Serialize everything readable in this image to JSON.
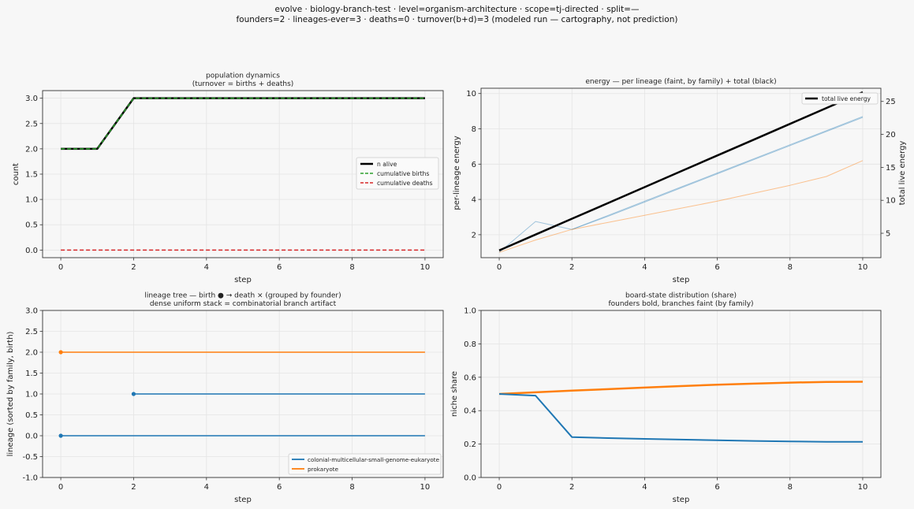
{
  "suptitle": {
    "line1": "evolve · biology-branch-test · level=organism-architecture · scope=tj-directed · split=—",
    "line2": "founders=2 · lineages-ever=3 · deaths=0 · turnover(b+d)=3   (modeled run — cartography, not prediction)"
  },
  "colors": {
    "blue": "#1f77b4",
    "orange": "#ff7f0e",
    "green": "#2ca02c",
    "red": "#d62728",
    "black": "#000000",
    "grid": "#e4e4e4",
    "panel_bg": "#f7f7f7"
  },
  "chart_data": [
    {
      "id": "population",
      "type": "line",
      "title": [
        "population dynamics",
        "(turnover = births + deaths)"
      ],
      "xlabel": "step",
      "ylabel": "count",
      "xlim": [
        -0.5,
        10.5
      ],
      "ylim": [
        -0.15,
        3.15
      ],
      "xticks": [
        0,
        2,
        4,
        6,
        8,
        10
      ],
      "yticks": [
        0.0,
        0.5,
        1.0,
        1.5,
        2.0,
        2.5,
        3.0
      ],
      "ytick_format": "fixed1",
      "grid": true,
      "legend": "center-right",
      "series": [
        {
          "name": "n alive",
          "color": "black",
          "width": 2.5,
          "dash": "",
          "x": [
            0,
            1,
            2,
            3,
            4,
            5,
            6,
            7,
            8,
            9,
            10
          ],
          "y": [
            2,
            2,
            3,
            3,
            3,
            3,
            3,
            3,
            3,
            3,
            3
          ]
        },
        {
          "name": "cumulative births",
          "color": "green",
          "width": 1.5,
          "dash": "5,3",
          "x": [
            0,
            1,
            2,
            3,
            4,
            5,
            6,
            7,
            8,
            9,
            10
          ],
          "y": [
            2,
            2,
            3,
            3,
            3,
            3,
            3,
            3,
            3,
            3,
            3
          ]
        },
        {
          "name": "cumulative deaths",
          "color": "red",
          "width": 1.5,
          "dash": "5,3",
          "x": [
            0,
            1,
            2,
            3,
            4,
            5,
            6,
            7,
            8,
            9,
            10
          ],
          "y": [
            0,
            0,
            0,
            0,
            0,
            0,
            0,
            0,
            0,
            0,
            0
          ]
        }
      ]
    },
    {
      "id": "energy",
      "type": "line",
      "title": [
        "energy — per lineage (faint, by family) + total (black)"
      ],
      "xlabel": "step",
      "ylabel": "per-lineage energy",
      "y2label": "total live energy",
      "xlim": [
        -0.5,
        10.5
      ],
      "ylim": [
        0.7,
        10.3
      ],
      "y2lim": [
        1.3,
        27.0
      ],
      "xticks": [
        0,
        2,
        4,
        6,
        8,
        10
      ],
      "yticks": [
        2,
        4,
        6,
        8,
        10
      ],
      "y2ticks": [
        5,
        10,
        15,
        20,
        25
      ],
      "ytick_format": "int",
      "grid": true,
      "legend": "top-right",
      "series": [
        {
          "name": "",
          "axis": "y",
          "color": "blue",
          "width": 1,
          "opacity": 0.4,
          "x": [
            0,
            1,
            2,
            3,
            4,
            5,
            6,
            7,
            8,
            9,
            10
          ],
          "y": [
            1.0,
            2.75,
            2.3,
            3.05,
            3.85,
            4.65,
            5.45,
            6.25,
            7.05,
            7.85,
            8.65
          ]
        },
        {
          "name": "",
          "axis": "y",
          "color": "blue",
          "width": 1,
          "opacity": 0.4,
          "x": [
            2,
            3,
            4,
            5,
            6,
            7,
            8,
            9,
            10
          ],
          "y": [
            2.3,
            3.1,
            3.9,
            4.7,
            5.5,
            6.3,
            7.1,
            7.9,
            8.7
          ]
        },
        {
          "name": "",
          "axis": "y",
          "color": "orange",
          "width": 1,
          "opacity": 0.45,
          "x": [
            0,
            1,
            2,
            3,
            4,
            5,
            6,
            7,
            8,
            9,
            10
          ],
          "y": [
            1.0,
            1.7,
            2.3,
            2.7,
            3.1,
            3.5,
            3.9,
            4.35,
            4.8,
            5.3,
            6.2
          ]
        },
        {
          "name": "total live energy",
          "axis": "y2",
          "color": "black",
          "width": 2.5,
          "opacity": 1,
          "x": [
            0,
            1,
            2,
            3,
            4,
            5,
            6,
            7,
            8,
            9,
            10
          ],
          "y": [
            2.4,
            4.8,
            7.2,
            9.6,
            12.0,
            14.4,
            16.8,
            19.2,
            21.6,
            24.0,
            26.4
          ]
        }
      ]
    },
    {
      "id": "lineage_tree",
      "type": "line",
      "title": [
        "lineage tree — birth ● → death ×  (grouped by founder)",
        "dense uniform stack = combinatorial branch artifact"
      ],
      "xlabel": "step",
      "ylabel": "lineage (sorted by family, birth)",
      "xlim": [
        -0.5,
        10.5
      ],
      "ylim": [
        -1.0,
        3.0
      ],
      "xticks": [
        0,
        2,
        4,
        6,
        8,
        10
      ],
      "yticks": [
        -1.0,
        -0.5,
        0.0,
        0.5,
        1.0,
        1.5,
        2.0,
        2.5,
        3.0
      ],
      "ytick_format": "fixed1",
      "grid": true,
      "legend": "bottom-right",
      "series": [
        {
          "name": "colonial-multicellular-small-genome-eukaryote",
          "color": "blue",
          "width": 1.5,
          "lineage": 0,
          "birth": 0,
          "end": 10
        },
        {
          "name": "",
          "color": "blue",
          "width": 1.5,
          "lineage": 1,
          "birth": 2,
          "end": 10
        },
        {
          "name": "prokaryote",
          "color": "orange",
          "width": 1.5,
          "lineage": 2,
          "birth": 0,
          "end": 10
        }
      ],
      "legend_entries": [
        {
          "name": "colonial-multicellular-small-genome-eukaryote",
          "color": "blue"
        },
        {
          "name": "prokaryote",
          "color": "orange"
        }
      ]
    },
    {
      "id": "board_share",
      "type": "line",
      "title": [
        "board-state distribution (share)",
        "founders bold, branches faint (by family)"
      ],
      "xlabel": "step",
      "ylabel": "niche share",
      "xlim": [
        -0.5,
        10.5
      ],
      "ylim": [
        0.0,
        1.0
      ],
      "xticks": [
        0,
        2,
        4,
        6,
        8,
        10
      ],
      "yticks": [
        0.0,
        0.2,
        0.4,
        0.6,
        0.8,
        1.0
      ],
      "ytick_format": "fixed1",
      "grid": true,
      "legend": "",
      "series": [
        {
          "name": "",
          "color": "orange",
          "width": 2.5,
          "x": [
            0,
            1,
            2,
            3,
            4,
            5,
            6,
            7,
            8,
            9,
            10
          ],
          "y": [
            0.5,
            0.51,
            0.52,
            0.529,
            0.538,
            0.547,
            0.555,
            0.562,
            0.568,
            0.572,
            0.573
          ]
        },
        {
          "name": "",
          "color": "blue",
          "width": 2.0,
          "x": [
            0,
            1,
            2,
            3,
            4,
            5,
            6,
            7,
            8,
            9,
            10
          ],
          "y": [
            0.5,
            0.49,
            0.242,
            0.236,
            0.231,
            0.227,
            0.223,
            0.219,
            0.216,
            0.213,
            0.213
          ]
        }
      ]
    }
  ]
}
